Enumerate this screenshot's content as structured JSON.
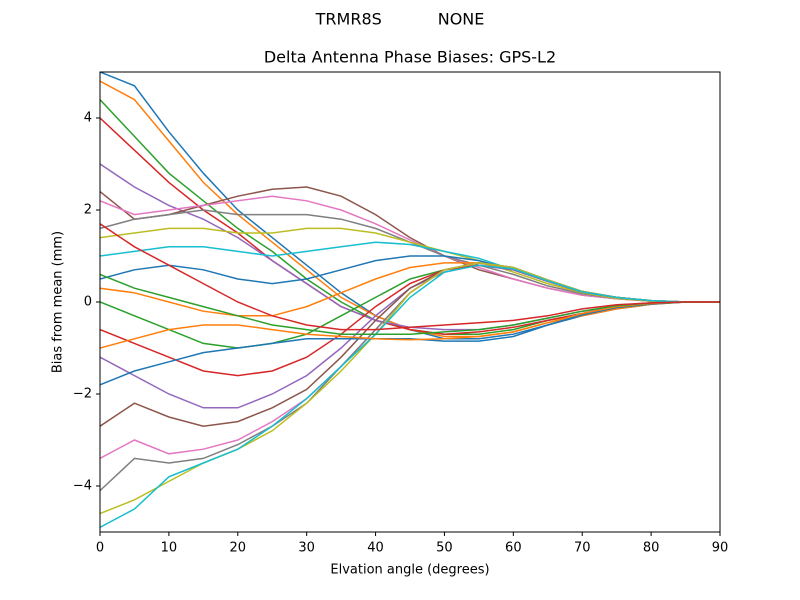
{
  "chart_data": {
    "type": "line",
    "suptitle": "TRMR8S           NONE",
    "title": "Delta Antenna Phase Biases: GPS-L2",
    "xlabel": "Elvation angle (degrees)",
    "ylabel": "Bias from mean (mm)",
    "x": [
      0,
      5,
      10,
      15,
      20,
      25,
      30,
      35,
      40,
      45,
      50,
      55,
      60,
      65,
      70,
      75,
      80,
      85,
      90
    ],
    "xlim": [
      0,
      90
    ],
    "xticks": [
      0,
      10,
      20,
      30,
      40,
      50,
      60,
      70,
      80,
      90
    ],
    "ylim": [
      -5,
      5
    ],
    "yticks": [
      {
        "value": -4,
        "label": "−4"
      },
      {
        "value": -2,
        "label": "−2"
      },
      0,
      2,
      4
    ],
    "series": [
      {
        "color": "#1f77b4",
        "values": [
          5.0,
          4.7,
          3.7,
          2.8,
          2.0,
          1.4,
          0.8,
          0.2,
          -0.3,
          -0.6,
          -0.8,
          -0.8,
          -0.7,
          -0.5,
          -0.3,
          -0.15,
          -0.05,
          0,
          0
        ]
      },
      {
        "color": "#ff7f0e",
        "values": [
          4.8,
          4.4,
          3.5,
          2.6,
          1.9,
          1.3,
          0.7,
          0.1,
          -0.3,
          -0.6,
          -0.75,
          -0.75,
          -0.65,
          -0.45,
          -0.3,
          -0.15,
          -0.05,
          0,
          0
        ]
      },
      {
        "color": "#2ca02c",
        "values": [
          4.4,
          3.6,
          2.8,
          2.2,
          1.6,
          1.1,
          0.5,
          0.0,
          -0.4,
          -0.6,
          -0.7,
          -0.7,
          -0.6,
          -0.4,
          -0.25,
          -0.12,
          -0.04,
          0,
          0
        ]
      },
      {
        "color": "#d62728",
        "values": [
          4.0,
          3.3,
          2.6,
          2.0,
          1.5,
          0.9,
          0.4,
          -0.1,
          -0.4,
          -0.6,
          -0.7,
          -0.65,
          -0.55,
          -0.4,
          -0.25,
          -0.1,
          -0.03,
          0,
          0
        ]
      },
      {
        "color": "#9467bd",
        "values": [
          3.0,
          2.5,
          2.1,
          1.8,
          1.4,
          0.9,
          0.4,
          -0.1,
          -0.4,
          -0.55,
          -0.6,
          -0.6,
          -0.5,
          -0.35,
          -0.2,
          -0.1,
          -0.03,
          0,
          0
        ]
      },
      {
        "color": "#8c564b",
        "values": [
          2.4,
          1.8,
          1.9,
          2.1,
          2.3,
          2.45,
          2.5,
          2.3,
          1.9,
          1.4,
          1.0,
          0.7,
          0.5,
          0.3,
          0.15,
          0.07,
          0.02,
          0,
          0
        ]
      },
      {
        "color": "#e377c2",
        "values": [
          2.2,
          1.9,
          2.0,
          2.1,
          2.2,
          2.3,
          2.2,
          2.0,
          1.7,
          1.35,
          1.0,
          0.75,
          0.5,
          0.3,
          0.15,
          0.07,
          0.02,
          0,
          0
        ]
      },
      {
        "color": "#7f7f7f",
        "values": [
          1.6,
          1.8,
          1.9,
          2.0,
          1.9,
          1.9,
          1.9,
          1.8,
          1.6,
          1.3,
          1.0,
          0.8,
          0.6,
          0.35,
          0.18,
          0.08,
          0.02,
          0,
          0
        ]
      },
      {
        "color": "#bcbd22",
        "values": [
          1.4,
          1.5,
          1.6,
          1.6,
          1.5,
          1.5,
          1.6,
          1.6,
          1.5,
          1.3,
          1.1,
          0.9,
          0.65,
          0.4,
          0.2,
          0.08,
          0.02,
          0,
          0
        ]
      },
      {
        "color": "#17becf",
        "values": [
          1.0,
          1.1,
          1.2,
          1.2,
          1.1,
          1.0,
          1.1,
          1.2,
          1.3,
          1.25,
          1.1,
          0.95,
          0.7,
          0.45,
          0.22,
          0.1,
          0.03,
          0,
          0
        ]
      },
      {
        "color": "#1f77b4",
        "values": [
          0.5,
          0.7,
          0.8,
          0.7,
          0.5,
          0.4,
          0.5,
          0.7,
          0.9,
          1.0,
          1.0,
          0.9,
          0.7,
          0.45,
          0.22,
          0.1,
          0.03,
          0,
          0
        ]
      },
      {
        "color": "#ff7f0e",
        "values": [
          0.3,
          0.2,
          0.0,
          -0.2,
          -0.3,
          -0.3,
          -0.1,
          0.2,
          0.5,
          0.75,
          0.85,
          0.85,
          0.7,
          0.45,
          0.22,
          0.1,
          0.03,
          0,
          0
        ]
      },
      {
        "color": "#2ca02c",
        "values": [
          0.0,
          -0.3,
          -0.6,
          -0.9,
          -1.0,
          -0.9,
          -0.7,
          -0.3,
          0.1,
          0.5,
          0.7,
          0.8,
          0.7,
          0.45,
          0.22,
          0.1,
          0.03,
          0,
          0
        ]
      },
      {
        "color": "#d62728",
        "values": [
          -0.6,
          -0.9,
          -1.2,
          -1.5,
          -1.6,
          -1.5,
          -1.2,
          -0.7,
          -0.1,
          0.4,
          0.7,
          0.8,
          0.7,
          0.45,
          0.22,
          0.1,
          0.03,
          0,
          0
        ]
      },
      {
        "color": "#9467bd",
        "values": [
          -1.2,
          -1.6,
          -2.0,
          -2.3,
          -2.3,
          -2.0,
          -1.6,
          -1.0,
          -0.3,
          0.3,
          0.65,
          0.8,
          0.7,
          0.45,
          0.22,
          0.1,
          0.03,
          0,
          0
        ]
      },
      {
        "color": "#8c564b",
        "values": [
          -2.7,
          -2.2,
          -2.5,
          -2.7,
          -2.6,
          -2.3,
          -1.9,
          -1.2,
          -0.4,
          0.3,
          0.7,
          0.85,
          0.75,
          0.48,
          0.23,
          0.1,
          0.03,
          0,
          0
        ]
      },
      {
        "color": "#e377c2",
        "values": [
          -3.4,
          -3.0,
          -3.3,
          -3.2,
          -3.0,
          -2.6,
          -2.1,
          -1.4,
          -0.6,
          0.2,
          0.7,
          0.85,
          0.75,
          0.48,
          0.23,
          0.1,
          0.03,
          0,
          0
        ]
      },
      {
        "color": "#7f7f7f",
        "values": [
          -4.1,
          -3.4,
          -3.5,
          -3.4,
          -3.1,
          -2.7,
          -2.2,
          -1.4,
          -0.6,
          0.2,
          0.7,
          0.85,
          0.75,
          0.48,
          0.23,
          0.1,
          0.03,
          0,
          0
        ]
      },
      {
        "color": "#bcbd22",
        "values": [
          -4.6,
          -4.3,
          -3.9,
          -3.5,
          -3.2,
          -2.8,
          -2.2,
          -1.5,
          -0.7,
          0.2,
          0.7,
          0.85,
          0.75,
          0.48,
          0.23,
          0.1,
          0.03,
          0,
          0
        ]
      },
      {
        "color": "#17becf",
        "values": [
          -4.9,
          -4.5,
          -3.8,
          -3.5,
          -3.2,
          -2.7,
          -2.1,
          -1.4,
          -0.7,
          0.1,
          0.65,
          0.8,
          0.72,
          0.46,
          0.22,
          0.1,
          0.03,
          0,
          0
        ]
      },
      {
        "color": "#1f77b4",
        "values": [
          -1.8,
          -1.5,
          -1.3,
          -1.1,
          -1.0,
          -0.9,
          -0.8,
          -0.8,
          -0.8,
          -0.8,
          -0.85,
          -0.85,
          -0.75,
          -0.5,
          -0.28,
          -0.12,
          -0.04,
          0,
          0
        ]
      },
      {
        "color": "#ff7f0e",
        "values": [
          -1.0,
          -0.8,
          -0.6,
          -0.5,
          -0.5,
          -0.6,
          -0.7,
          -0.75,
          -0.8,
          -0.82,
          -0.8,
          -0.75,
          -0.65,
          -0.45,
          -0.25,
          -0.1,
          -0.03,
          0,
          0
        ]
      },
      {
        "color": "#2ca02c",
        "values": [
          0.6,
          0.3,
          0.1,
          -0.1,
          -0.3,
          -0.5,
          -0.6,
          -0.7,
          -0.7,
          -0.7,
          -0.65,
          -0.6,
          -0.5,
          -0.35,
          -0.2,
          -0.08,
          -0.02,
          0,
          0
        ]
      },
      {
        "color": "#d62728",
        "values": [
          1.7,
          1.2,
          0.8,
          0.4,
          0.0,
          -0.3,
          -0.5,
          -0.6,
          -0.6,
          -0.55,
          -0.5,
          -0.45,
          -0.4,
          -0.3,
          -0.15,
          -0.06,
          -0.02,
          0,
          0
        ]
      }
    ]
  }
}
